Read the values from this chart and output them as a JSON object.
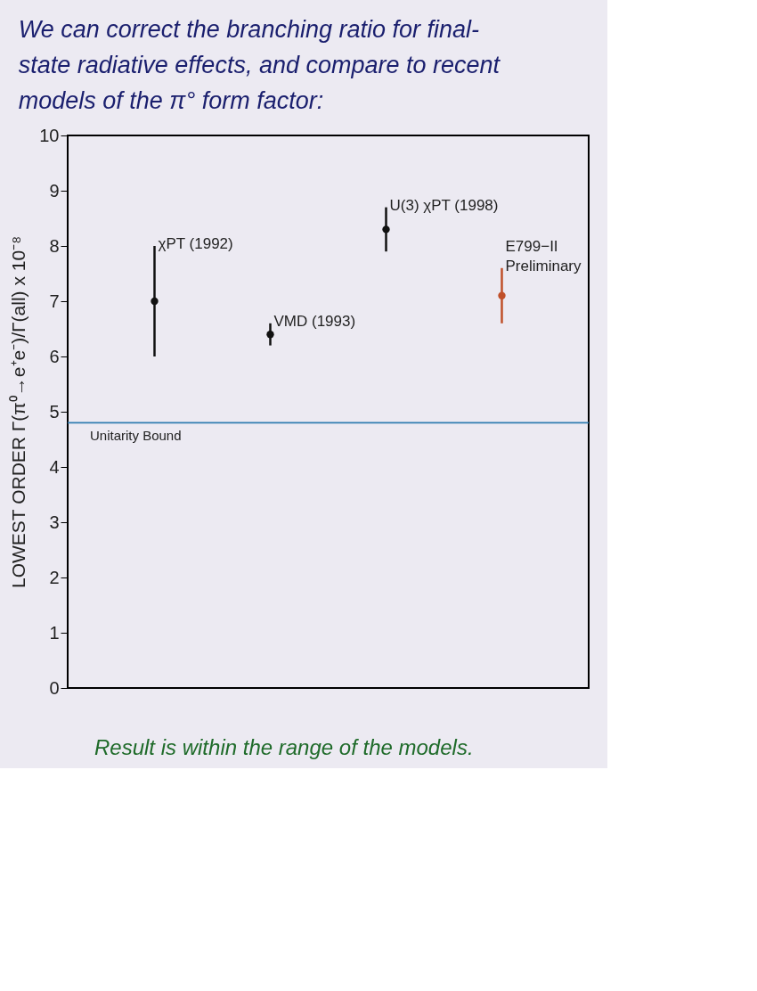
{
  "chart_data": {
    "type": "scatter",
    "title": "We can correct the branching ratio for final-state radiative effects, and compare to recent models of the π° form factor:",
    "ylabel": "LOWEST ORDER Γ(π⁰→e⁺e⁻)/Γ(all) x 10⁻⁸",
    "categories": [
      null,
      null,
      null,
      null
    ],
    "values": [
      7.0,
      6.4,
      8.3,
      7.1
    ],
    "errors": [
      1.0,
      0.2,
      0.4,
      0.5
    ],
    "colors": [
      "#111111",
      "#111111",
      "#111111",
      "#c0502a"
    ],
    "ylim": [
      0,
      10
    ],
    "yticks": [
      0,
      1,
      2,
      3,
      4,
      5,
      6,
      7,
      8,
      9,
      10
    ],
    "tick_labels": "y",
    "grid": false,
    "legend": false,
    "marker": "circle",
    "ref_lines": [
      {
        "axis": "y",
        "value": 4.8,
        "label": "Unitarity Bound",
        "color": "#2f7cb0"
      }
    ],
    "annotations": [
      "χPT (1992)",
      "VMD (1993)",
      "U(3) χPT (1998)",
      "E799−II\nPreliminary",
      "Result is within the range of the models."
    ]
  }
}
